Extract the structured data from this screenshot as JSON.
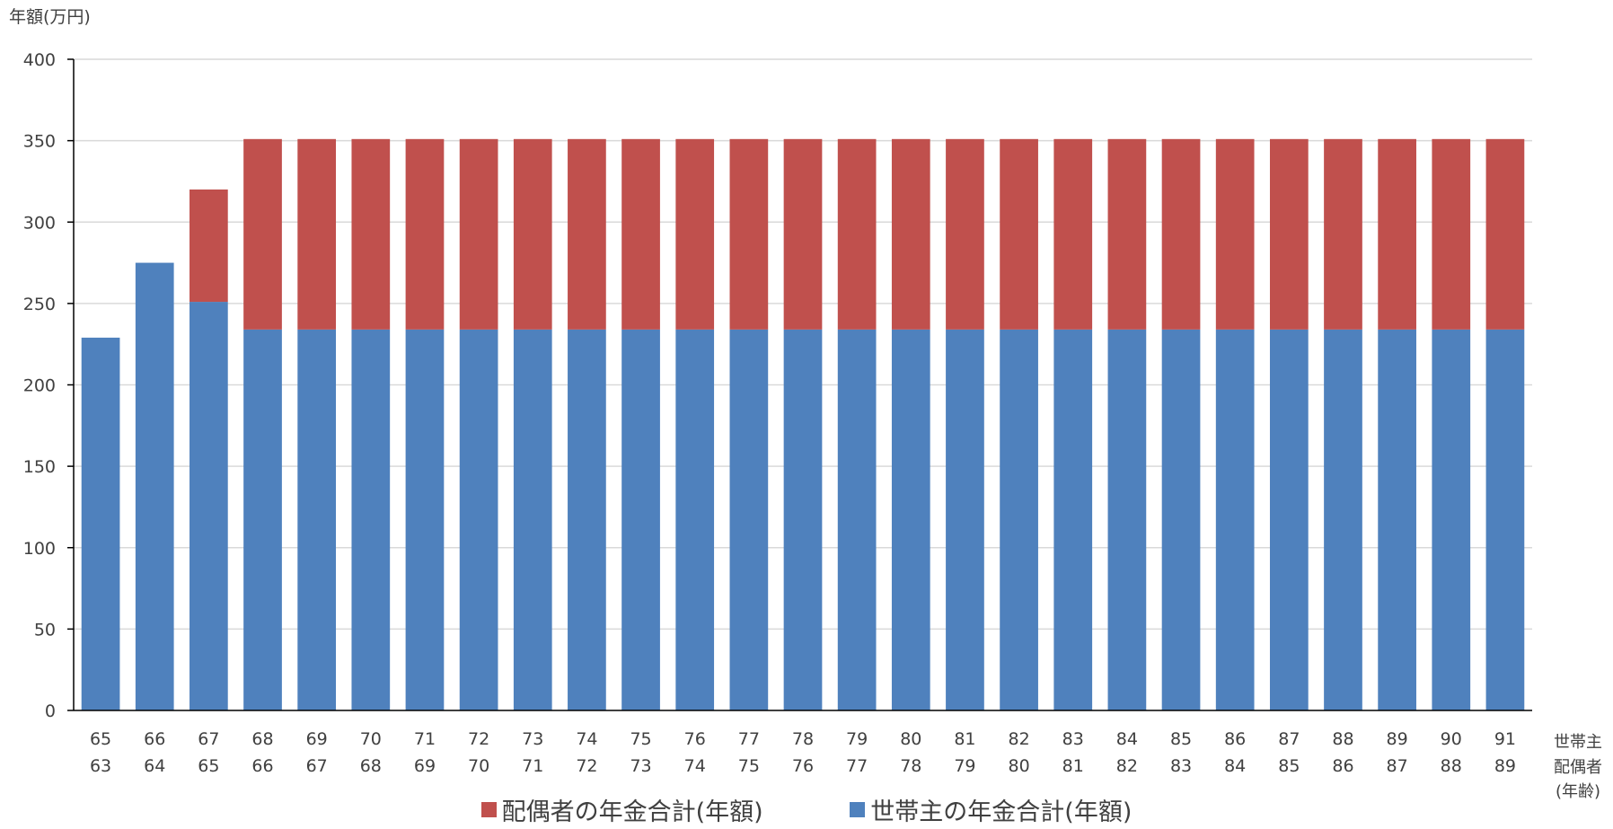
{
  "chart_data": {
    "type": "bar",
    "stacked": true,
    "y_axis_title": "年額(万円)",
    "ylim": [
      0,
      400
    ],
    "yticks": [
      0,
      50,
      100,
      150,
      200,
      250,
      300,
      350,
      400
    ],
    "grid": true,
    "legend_position": "bottom",
    "x_axis_row_labels": [
      "世帯主",
      "配偶者",
      "(年齢)"
    ],
    "categories_head": [
      "65",
      "66",
      "67",
      "68",
      "69",
      "70",
      "71",
      "72",
      "73",
      "74",
      "75",
      "76",
      "77",
      "78",
      "79",
      "80",
      "81",
      "82",
      "83",
      "84",
      "85",
      "86",
      "87",
      "88",
      "89",
      "90",
      "91"
    ],
    "categories_spouse": [
      "63",
      "64",
      "65",
      "66",
      "67",
      "68",
      "69",
      "70",
      "71",
      "72",
      "73",
      "74",
      "75",
      "76",
      "77",
      "78",
      "79",
      "80",
      "81",
      "82",
      "83",
      "84",
      "85",
      "86",
      "87",
      "88",
      "89"
    ],
    "series": [
      {
        "name": "世帯主の年金合計(年額)",
        "color": "#4F81BD",
        "values": [
          229,
          275,
          251,
          234,
          234,
          234,
          234,
          234,
          234,
          234,
          234,
          234,
          234,
          234,
          234,
          234,
          234,
          234,
          234,
          234,
          234,
          234,
          234,
          234,
          234,
          234,
          234
        ]
      },
      {
        "name": "配偶者の年金合計(年額)",
        "color": "#C0504D",
        "values": [
          0,
          0,
          69,
          117,
          117,
          117,
          117,
          117,
          117,
          117,
          117,
          117,
          117,
          117,
          117,
          117,
          117,
          117,
          117,
          117,
          117,
          117,
          117,
          117,
          117,
          117,
          117
        ]
      }
    ],
    "legend_order": [
      "配偶者の年金合計(年額)",
      "世帯主の年金合計(年額)"
    ]
  }
}
